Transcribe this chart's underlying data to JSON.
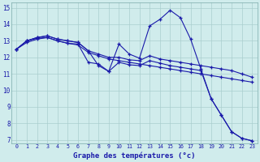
{
  "xlabel": "Graphe des températures (°c)",
  "background_color": "#d0ecec",
  "grid_color": "#aacece",
  "line_color": "#1a1aaa",
  "xlim": [
    -0.5,
    23.5
  ],
  "ylim": [
    6.8,
    15.3
  ],
  "xticks": [
    0,
    1,
    2,
    3,
    4,
    5,
    6,
    7,
    8,
    9,
    10,
    11,
    12,
    13,
    14,
    15,
    16,
    17,
    18,
    19,
    20,
    21,
    22,
    23
  ],
  "yticks": [
    7,
    8,
    9,
    10,
    11,
    12,
    13,
    14,
    15
  ],
  "series": [
    {
      "x": [
        0,
        1,
        2,
        3,
        4,
        5,
        6,
        7,
        8,
        9,
        10,
        11,
        12,
        13,
        14,
        15,
        16,
        17,
        18,
        19,
        20,
        21,
        22,
        23
      ],
      "y": [
        12.5,
        13.0,
        13.2,
        13.3,
        13.1,
        13.0,
        12.9,
        12.4,
        11.5,
        11.15,
        12.8,
        12.2,
        11.95,
        13.9,
        14.3,
        14.85,
        14.4,
        13.1,
        11.3,
        9.5,
        8.5,
        7.5,
        7.1,
        6.95
      ]
    },
    {
      "x": [
        0,
        1,
        2,
        3,
        4,
        5,
        6,
        7,
        8,
        9,
        10,
        11,
        12,
        13,
        14,
        15,
        16,
        17,
        18,
        19,
        20,
        21,
        22,
        23
      ],
      "y": [
        12.5,
        13.0,
        13.2,
        13.3,
        13.1,
        13.0,
        12.9,
        12.4,
        12.2,
        12.0,
        12.0,
        11.85,
        11.8,
        12.1,
        11.9,
        11.8,
        11.7,
        11.6,
        11.5,
        11.4,
        11.3,
        11.2,
        11.0,
        10.8
      ]
    },
    {
      "x": [
        0,
        1,
        2,
        3,
        4,
        5,
        6,
        7,
        8,
        9,
        10,
        11,
        12,
        13,
        14,
        15,
        16,
        17,
        18,
        19,
        20,
        21,
        22,
        23
      ],
      "y": [
        12.5,
        13.0,
        13.15,
        13.2,
        13.0,
        12.85,
        12.8,
        11.7,
        11.6,
        11.15,
        11.7,
        11.55,
        11.5,
        11.8,
        11.65,
        11.5,
        11.4,
        11.3,
        11.2,
        9.5,
        8.5,
        7.5,
        7.1,
        6.95
      ]
    },
    {
      "x": [
        0,
        1,
        2,
        3,
        4,
        5,
        6,
        7,
        8,
        9,
        10,
        11,
        12,
        13,
        14,
        15,
        16,
        17,
        18,
        19,
        20,
        21,
        22,
        23
      ],
      "y": [
        12.5,
        12.9,
        13.1,
        13.2,
        13.0,
        12.85,
        12.75,
        12.3,
        12.1,
        11.9,
        11.8,
        11.7,
        11.6,
        11.5,
        11.4,
        11.3,
        11.2,
        11.1,
        11.0,
        10.9,
        10.8,
        10.7,
        10.6,
        10.5
      ]
    }
  ]
}
